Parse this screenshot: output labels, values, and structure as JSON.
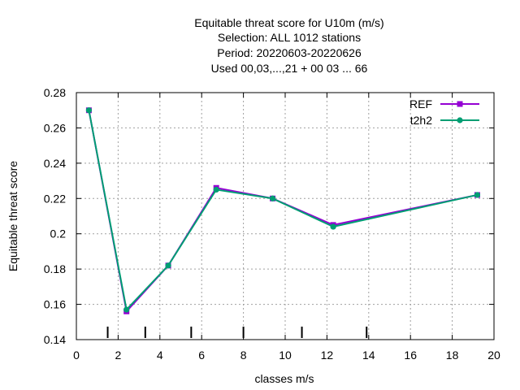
{
  "chart_data": {
    "type": "line",
    "title_lines": [
      "Equitable threat score  for U10m (m/s)",
      "Selection: ALL   1012 stations",
      "Period: 20220603-20220626",
      "Used  00,03,...,21  + 00 03 ... 66"
    ],
    "xlabel": "classes m/s",
    "ylabel": "Equitable threat score",
    "xlim": [
      0,
      20
    ],
    "ylim": [
      0.14,
      0.28
    ],
    "x_ticks": [
      0,
      2,
      4,
      6,
      8,
      10,
      12,
      14,
      16,
      18,
      20
    ],
    "y_ticks": [
      0.14,
      0.16,
      0.18,
      0.2,
      0.22,
      0.24,
      0.26,
      0.28
    ],
    "y_tick_labels": [
      "0.14",
      "0.16",
      "0.18",
      "0.2",
      "0.22",
      "0.24",
      "0.26",
      "0.28"
    ],
    "grid": true,
    "legend_position": "top-right",
    "class_boundaries": [
      1.5,
      3.3,
      5.5,
      8.0,
      10.8,
      13.9
    ],
    "series": [
      {
        "name": "REF",
        "color": "#9400d3",
        "x": [
          0.6,
          2.4,
          4.4,
          6.7,
          9.4,
          12.3,
          19.2
        ],
        "y": [
          0.27,
          0.156,
          0.182,
          0.226,
          0.22,
          0.205,
          0.222
        ]
      },
      {
        "name": "t2h2",
        "color": "#009e73",
        "x": [
          0.6,
          2.4,
          4.4,
          6.7,
          9.4,
          12.3,
          19.2
        ],
        "y": [
          0.27,
          0.157,
          0.182,
          0.225,
          0.22,
          0.204,
          0.222
        ]
      }
    ]
  }
}
